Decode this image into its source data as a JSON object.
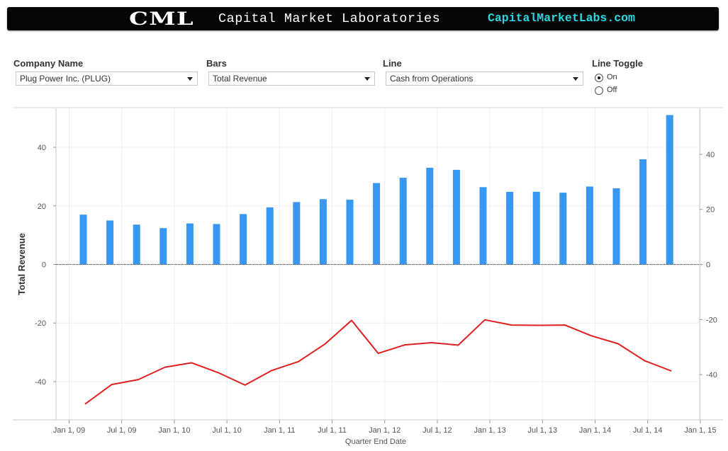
{
  "banner": {
    "logo": "CML",
    "name": "Capital Market Laboratories",
    "site": "CapitalMarketLabs.com"
  },
  "filters": {
    "company": {
      "label": "Company Name",
      "value": "Plug Power Inc. (PLUG)"
    },
    "bars": {
      "label": "Bars",
      "value": "Total Revenue"
    },
    "line": {
      "label": "Line",
      "value": "Cash from Operations"
    },
    "toggle": {
      "label": "Line Toggle",
      "options": [
        "On",
        "Off"
      ],
      "selected": "On"
    }
  },
  "chart_data": {
    "type": "bar",
    "ylabel": "Total Revenue",
    "xlabel": "Quarter End Date",
    "ylim": [
      -52,
      52
    ],
    "x_tick_labels": [
      "Jan 1, 09",
      "Jul 1, 09",
      "Jan 1, 10",
      "Jul 1, 10",
      "Jan 1, 11",
      "Jul 1, 11",
      "Jan 1, 12",
      "Jul 1, 12",
      "Jan 1, 13",
      "Jul 1, 13",
      "Jan 1, 14",
      "Jul 1, 14",
      "Jan 1, 15"
    ],
    "y_ticks_left": [
      40,
      20,
      0,
      -20,
      -40
    ],
    "y_ticks_right": [
      40,
      20,
      0,
      -20,
      -40
    ],
    "bar_color": "#3897f0",
    "line_color": "#e02020",
    "series": [
      {
        "name": "Total Revenue",
        "values": [
          17,
          15,
          13.6,
          12.4,
          14,
          13.8,
          17.2,
          19.5,
          21.3,
          22.3,
          22.1,
          27.8,
          29.6,
          33,
          32.3,
          26.4,
          24.8,
          24.8,
          24.5,
          26.6,
          26,
          35.9,
          51
        ]
      },
      {
        "name": "Cash from Operations",
        "values": [
          -50.7,
          -43.6,
          -41.8,
          -37.3,
          -35.7,
          -39.3,
          -43.8,
          -38.5,
          -35.3,
          -28.9,
          -20.3,
          -32.3,
          -29.2,
          -28.4,
          -29.3,
          -20.1,
          -22,
          -22.1,
          -22,
          -25.9,
          -28.8,
          -35,
          -38.7
        ]
      }
    ]
  }
}
